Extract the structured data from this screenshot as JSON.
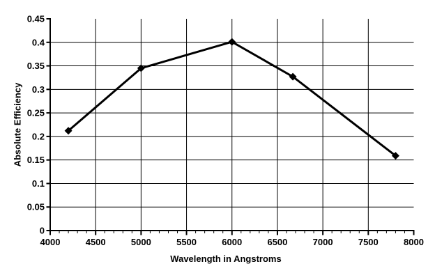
{
  "chart_data": {
    "type": "line",
    "title": "",
    "xlabel": "Wavelength in Angstroms",
    "ylabel": "Absolute Efficiency",
    "series": [
      {
        "name": "Absolute Efficiency",
        "x": [
          4200,
          5000,
          6000,
          6670,
          7800
        ],
        "y": [
          0.212,
          0.345,
          0.401,
          0.327,
          0.159
        ]
      }
    ],
    "xlim": [
      4000,
      8000
    ],
    "ylim": [
      0,
      0.45
    ],
    "x_major_step": 500,
    "x_minor_step": 100,
    "y_major_step": 0.05,
    "x_tick_labels": [
      "4000",
      "4500",
      "5000",
      "5500",
      "6000",
      "6500",
      "7000",
      "7500",
      "8000"
    ],
    "y_tick_labels": [
      "0",
      "0.05",
      "0.1",
      "0.15",
      "0.2",
      "0.25",
      "0.3",
      "0.35",
      "0.4",
      "0.45"
    ],
    "grid": true,
    "legend": "none",
    "marker": "diamond",
    "colors": {
      "line": "#000000",
      "marker": "#000000",
      "grid": "#000000",
      "axis": "#000000",
      "text": "#000000",
      "background": "#ffffff"
    }
  }
}
